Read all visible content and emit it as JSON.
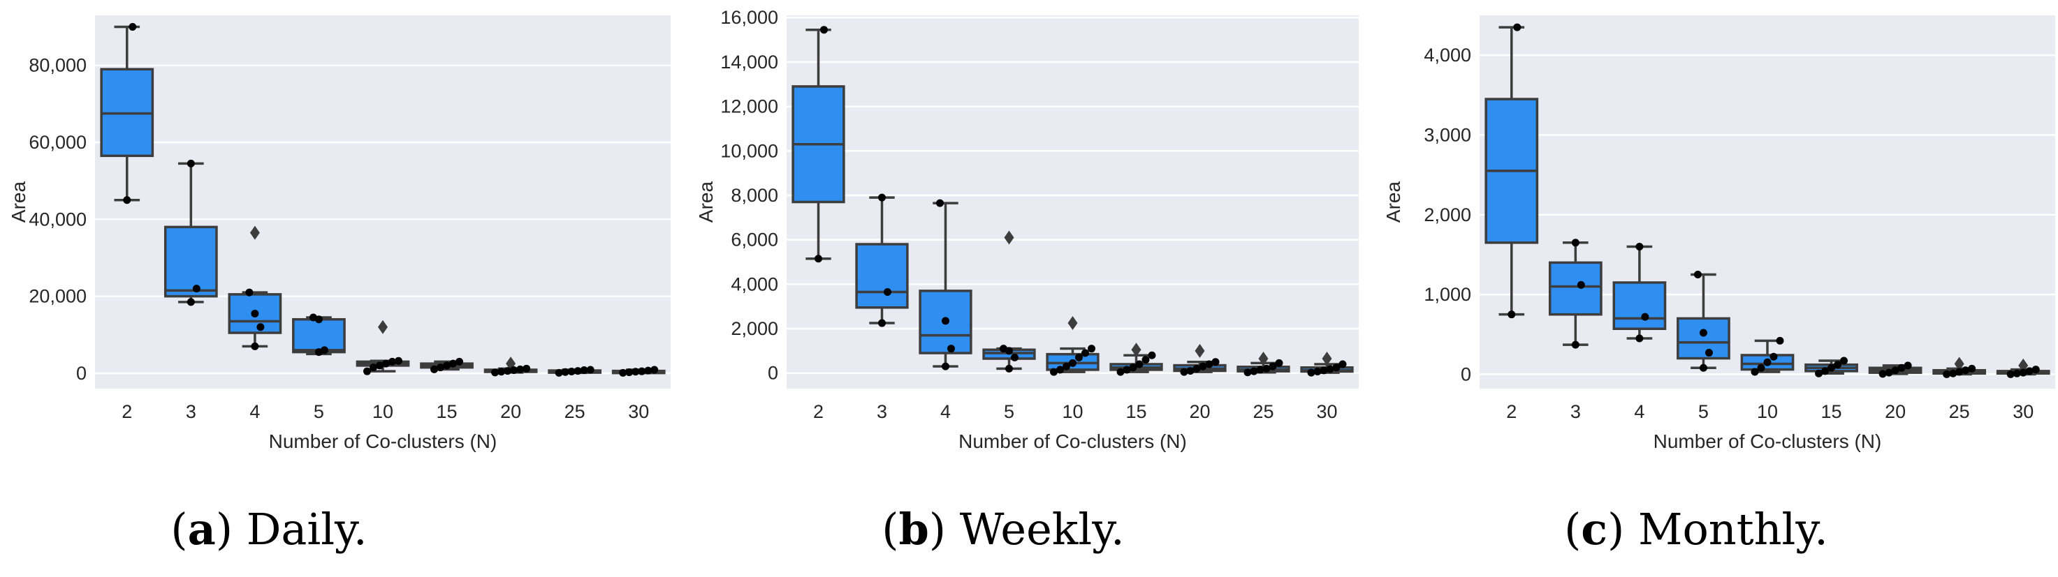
{
  "colors": {
    "plot_bg": "#eaeaf2",
    "grid": "#ffffff",
    "box_fill": "#2f8ff0",
    "box_edge": "#3d3d3d",
    "point": "#000000"
  },
  "chart_data": [
    {
      "type": "box",
      "id": "a",
      "caption_letter": "a",
      "caption_text": " Daily.",
      "xlabel": "Number of Co-clusters (N)",
      "ylabel": "Area",
      "categories": [
        "2",
        "3",
        "4",
        "5",
        "10",
        "15",
        "20",
        "25",
        "30"
      ],
      "ylim": [
        -4000,
        93000
      ],
      "yticks": [
        0,
        20000,
        40000,
        60000,
        80000
      ],
      "ytick_labels": [
        "0",
        "20,000",
        "40,000",
        "60,000",
        "80,000"
      ],
      "boxes": [
        {
          "q1": 56500,
          "median": 67500,
          "q3": 79000,
          "wlo": 45000,
          "whi": 90000,
          "fliers": [],
          "points": [
            45000,
            90000
          ]
        },
        {
          "q1": 20000,
          "median": 21500,
          "q3": 38000,
          "wlo": 18500,
          "whi": 54500,
          "fliers": [],
          "points": [
            18500,
            22000,
            54500
          ]
        },
        {
          "q1": 10500,
          "median": 13500,
          "q3": 20500,
          "wlo": 7000,
          "whi": 21000,
          "fliers": [
            36500
          ],
          "points": [
            7000,
            12000,
            15500,
            21000
          ]
        },
        {
          "q1": 5500,
          "median": 6000,
          "q3": 14000,
          "wlo": 5000,
          "whi": 14500,
          "fliers": [],
          "points": [
            5500,
            6000,
            14000,
            14500
          ]
        },
        {
          "q1": 2000,
          "median": 2500,
          "q3": 3000,
          "wlo": 500,
          "whi": 3200,
          "fliers": [
            12000
          ],
          "points": [
            500,
            1500,
            2000,
            2500,
            3000,
            3200
          ]
        },
        {
          "q1": 1500,
          "median": 2000,
          "q3": 2500,
          "wlo": 1000,
          "whi": 3000,
          "fliers": [],
          "points": [
            1000,
            1500,
            2000,
            2500,
            3000
          ]
        },
        {
          "q1": 400,
          "median": 600,
          "q3": 900,
          "wlo": 200,
          "whi": 1200,
          "fliers": [
            2500
          ],
          "points": [
            200,
            400,
            600,
            800,
            1000,
            1200
          ]
        },
        {
          "q1": 300,
          "median": 450,
          "q3": 700,
          "wlo": 100,
          "whi": 900,
          "fliers": [],
          "points": [
            100,
            300,
            450,
            600,
            800,
            900
          ]
        },
        {
          "q1": 250,
          "median": 400,
          "q3": 600,
          "wlo": 100,
          "whi": 900,
          "fliers": [],
          "points": [
            100,
            250,
            400,
            500,
            700,
            900
          ]
        }
      ]
    },
    {
      "type": "box",
      "id": "b",
      "caption_letter": "b",
      "caption_text": " Weekly.",
      "xlabel": "Number of Co-clusters (N)",
      "ylabel": "Area",
      "categories": [
        "2",
        "3",
        "4",
        "5",
        "10",
        "15",
        "20",
        "25",
        "30"
      ],
      "ylim": [
        -700,
        16100
      ],
      "yticks": [
        0,
        2000,
        4000,
        6000,
        8000,
        10000,
        12000,
        14000,
        16000
      ],
      "ytick_labels": [
        "0",
        "2,000",
        "4,000",
        "6,000",
        "8,000",
        "10,000",
        "12,000",
        "14,000",
        "16,000"
      ],
      "boxes": [
        {
          "q1": 7700,
          "median": 10300,
          "q3": 12900,
          "wlo": 5150,
          "whi": 15450,
          "fliers": [],
          "points": [
            5150,
            15450
          ]
        },
        {
          "q1": 2950,
          "median": 3650,
          "q3": 5800,
          "wlo": 2250,
          "whi": 7900,
          "fliers": [],
          "points": [
            2250,
            3650,
            7900
          ]
        },
        {
          "q1": 900,
          "median": 1700,
          "q3": 3700,
          "wlo": 300,
          "whi": 7650,
          "fliers": [],
          "points": [
            300,
            1100,
            2350,
            7650
          ]
        },
        {
          "q1": 650,
          "median": 900,
          "q3": 1050,
          "wlo": 200,
          "whi": 1100,
          "fliers": [
            6100
          ],
          "points": [
            200,
            700,
            1000,
            1100
          ]
        },
        {
          "q1": 150,
          "median": 450,
          "q3": 850,
          "wlo": 50,
          "whi": 1100,
          "fliers": [
            2250
          ],
          "points": [
            50,
            150,
            300,
            450,
            700,
            900,
            1100
          ]
        },
        {
          "q1": 150,
          "median": 250,
          "q3": 400,
          "wlo": 50,
          "whi": 800,
          "fliers": [
            1050
          ],
          "points": [
            50,
            150,
            250,
            400,
            600,
            800
          ]
        },
        {
          "q1": 100,
          "median": 200,
          "q3": 350,
          "wlo": 50,
          "whi": 500,
          "fliers": [
            1000
          ],
          "points": [
            50,
            100,
            200,
            300,
            400,
            500
          ]
        },
        {
          "q1": 80,
          "median": 150,
          "q3": 280,
          "wlo": 30,
          "whi": 450,
          "fliers": [
            650
          ],
          "points": [
            30,
            80,
            150,
            200,
            300,
            450
          ]
        },
        {
          "q1": 70,
          "median": 120,
          "q3": 250,
          "wlo": 20,
          "whi": 400,
          "fliers": [
            650
          ],
          "points": [
            20,
            70,
            120,
            180,
            250,
            400
          ]
        }
      ]
    },
    {
      "type": "box",
      "id": "c",
      "caption_letter": "c",
      "caption_text": " Monthly.",
      "xlabel": "Number of Co-clusters (N)",
      "ylabel": "Area",
      "categories": [
        "2",
        "3",
        "4",
        "5",
        "10",
        "15",
        "20",
        "25",
        "30"
      ],
      "ylim": [
        -180,
        4500
      ],
      "yticks": [
        0,
        1000,
        2000,
        3000,
        4000
      ],
      "ytick_labels": [
        "0",
        "1,000",
        "2,000",
        "3,000",
        "4,000"
      ],
      "boxes": [
        {
          "q1": 1650,
          "median": 2550,
          "q3": 3450,
          "wlo": 750,
          "whi": 4350,
          "fliers": [],
          "points": [
            750,
            4350
          ]
        },
        {
          "q1": 750,
          "median": 1100,
          "q3": 1400,
          "wlo": 370,
          "whi": 1650,
          "fliers": [],
          "points": [
            370,
            1120,
            1650
          ]
        },
        {
          "q1": 570,
          "median": 700,
          "q3": 1150,
          "wlo": 450,
          "whi": 1600,
          "fliers": [],
          "points": [
            450,
            720,
            1600
          ]
        },
        {
          "q1": 200,
          "median": 400,
          "q3": 700,
          "wlo": 80,
          "whi": 1250,
          "fliers": [],
          "points": [
            80,
            270,
            520,
            1250
          ]
        },
        {
          "q1": 60,
          "median": 130,
          "q3": 240,
          "wlo": 30,
          "whi": 420,
          "fliers": [],
          "points": [
            30,
            80,
            150,
            220,
            420
          ]
        },
        {
          "q1": 40,
          "median": 80,
          "q3": 120,
          "wlo": 10,
          "whi": 170,
          "fliers": [],
          "points": [
            10,
            40,
            80,
            120,
            170
          ]
        },
        {
          "q1": 20,
          "median": 50,
          "q3": 80,
          "wlo": 5,
          "whi": 110,
          "fliers": [],
          "points": [
            5,
            20,
            50,
            80,
            110
          ]
        },
        {
          "q1": 10,
          "median": 30,
          "q3": 50,
          "wlo": 0,
          "whi": 70,
          "fliers": [
            130
          ],
          "points": [
            0,
            10,
            30,
            50,
            70
          ]
        },
        {
          "q1": 10,
          "median": 20,
          "q3": 40,
          "wlo": 0,
          "whi": 60,
          "fliers": [
            110
          ],
          "points": [
            0,
            10,
            20,
            40,
            60
          ]
        }
      ]
    }
  ]
}
